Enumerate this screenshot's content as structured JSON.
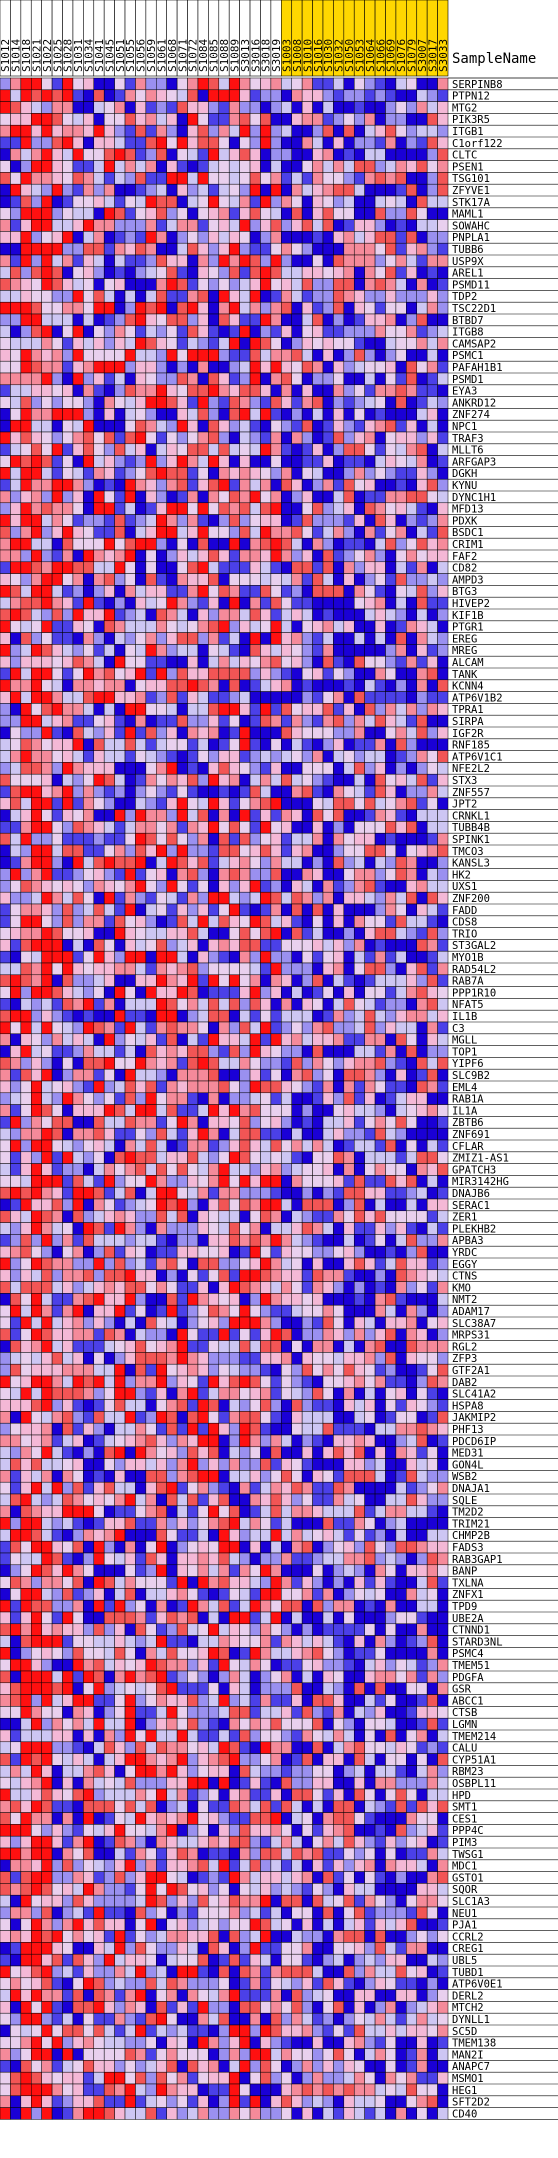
{
  "chart_data": {
    "type": "heatmap",
    "row_header": "SampleName",
    "columns": [
      {
        "name": "S1012",
        "group": "class1"
      },
      {
        "name": "S1014",
        "group": "class1"
      },
      {
        "name": "S1018",
        "group": "class1"
      },
      {
        "name": "S1021",
        "group": "class1"
      },
      {
        "name": "S1022",
        "group": "class1"
      },
      {
        "name": "S1025",
        "group": "class1"
      },
      {
        "name": "S1028",
        "group": "class1"
      },
      {
        "name": "S1031",
        "group": "class1"
      },
      {
        "name": "S1034",
        "group": "class1"
      },
      {
        "name": "S1041",
        "group": "class1"
      },
      {
        "name": "S1045",
        "group": "class1"
      },
      {
        "name": "S1051",
        "group": "class1"
      },
      {
        "name": "S1055",
        "group": "class1"
      },
      {
        "name": "S1056",
        "group": "class1"
      },
      {
        "name": "S1059",
        "group": "class1"
      },
      {
        "name": "S1061",
        "group": "class1"
      },
      {
        "name": "S1068",
        "group": "class1"
      },
      {
        "name": "S1071",
        "group": "class1"
      },
      {
        "name": "S1072",
        "group": "class1"
      },
      {
        "name": "S1084",
        "group": "class1"
      },
      {
        "name": "S1085",
        "group": "class1"
      },
      {
        "name": "S1088",
        "group": "class1"
      },
      {
        "name": "S1089",
        "group": "class1"
      },
      {
        "name": "S3013",
        "group": "class1"
      },
      {
        "name": "S3016",
        "group": "class1"
      },
      {
        "name": "S3018",
        "group": "class1"
      },
      {
        "name": "S3019",
        "group": "class1"
      },
      {
        "name": "S1003",
        "group": "class2"
      },
      {
        "name": "S1008",
        "group": "class2"
      },
      {
        "name": "S1010",
        "group": "class2"
      },
      {
        "name": "S1016",
        "group": "class2"
      },
      {
        "name": "S1030",
        "group": "class2"
      },
      {
        "name": "S1032",
        "group": "class2"
      },
      {
        "name": "S1050",
        "group": "class2"
      },
      {
        "name": "S1053",
        "group": "class2"
      },
      {
        "name": "S1064",
        "group": "class2"
      },
      {
        "name": "S1066",
        "group": "class2"
      },
      {
        "name": "S1069",
        "group": "class2"
      },
      {
        "name": "S1076",
        "group": "class2"
      },
      {
        "name": "S1079",
        "group": "class2"
      },
      {
        "name": "S3007",
        "group": "class2"
      },
      {
        "name": "S3017",
        "group": "class2"
      },
      {
        "name": "S3033",
        "group": "class2"
      }
    ],
    "rows": [
      "SERPINB8",
      "PTPN12",
      "MTG2",
      "PIK3R5",
      "ITGB1",
      "C1orf122",
      "CLTC",
      "PSEN1",
      "TSG101",
      "ZFYVE1",
      "STK17A",
      "MAML1",
      "SOWAHC",
      "PNPLA1",
      "TUBB6",
      "USP9X",
      "AREL1",
      "PSMD11",
      "TDP2",
      "TSC22D1",
      "BTBD7",
      "ITGB8",
      "CAMSAP2",
      "PSMC1",
      "PAFAH1B1",
      "PSMD1",
      "EYA3",
      "ANKRD12",
      "ZNF274",
      "NPC1",
      "TRAF3",
      "MLLT6",
      "ARFGAP3",
      "DGKH",
      "KYNU",
      "DYNC1H1",
      "MFD13",
      "PDXK",
      "BSDC1",
      "CRIM1",
      "FAF2",
      "CD82",
      "AMPD3",
      "BTG3",
      "HIVEP2",
      "KIF1B",
      "PTGR1",
      "EREG",
      "MREG",
      "ALCAM",
      "TANK",
      "KCNN4",
      "ATP6V1B2",
      "TPRA1",
      "SIRPA",
      "IGF2R",
      "RNF185",
      "ATP6V1C1",
      "NFE2L2",
      "STX3",
      "ZNF557",
      "JPT2",
      "CRNKL1",
      "TUBB4B",
      "SPINK1",
      "TMCO3",
      "KANSL3",
      "HK2",
      "UXS1",
      "ZNF200",
      "FADD",
      "CDS8",
      "TRIO",
      "ST3GAL2",
      "MYO1B",
      "RAD54L2",
      "RAB7A",
      "PPP1R10",
      "NFAT5",
      "IL1B",
      "C3",
      "MGLL",
      "TOP1",
      "YIPF6",
      "SLC9B2",
      "EML4",
      "RAB1A",
      "IL1A",
      "ZBTB6",
      "ZNF691",
      "CFLAR",
      "ZMIZ1-AS1",
      "GPATCH3",
      "MIR3142HG",
      "DNAJB6",
      "SERAC1",
      "ZER1",
      "PLEKHB2",
      "APBA3",
      "YRDC",
      "EGGY",
      "CTNS",
      "KMO",
      "NMT2",
      "ADAM17",
      "SLC38A7",
      "MRPS31",
      "RGL2",
      "ZFP3",
      "GTF2A1",
      "DAB2",
      "SLC41A2",
      "HSPA8",
      "JAKMIP2",
      "PHF13",
      "PDCD6IP",
      "MED31",
      "GON4L",
      "WSB2",
      "DNAJA1",
      "SQLE",
      "TM2D2",
      "TRIM21",
      "CHMP2B",
      "FADS3",
      "RAB3GAP1",
      "BANP",
      "TXLNA",
      "ZNFX1",
      "TPD9",
      "UBE2A",
      "CTNND1",
      "STARD3NL",
      "PSMC4",
      "TMEM51",
      "PDGFA",
      "GSR",
      "ABCC1",
      "CTSB",
      "LGMN",
      "TMEM214",
      "CALU",
      "CYP51A1",
      "RBM23",
      "OSBPL11",
      "HPD",
      "SMT1",
      "CES1",
      "PPP4C",
      "PIM3",
      "TWSG1",
      "MDC1",
      "GSTO1",
      "SQOR",
      "SLC1A3",
      "NEU1",
      "PJA1",
      "CCRL2",
      "CREG1",
      "UBL5",
      "TUBD1",
      "ATP6V0E1",
      "DERL2",
      "MTCH2",
      "DYNLL1",
      "SC5D",
      "TMEM138",
      "MAN2I",
      "ANAPC7",
      "MSMO1",
      "HEG1",
      "SFT2D2",
      "CD40"
    ],
    "color_scale": {
      "low": "#2a00d9",
      "mid": "#e8c6f0",
      "high": "#ff0000"
    },
    "grid": true,
    "group_colors": {
      "class1": "#ffffff",
      "class2": "#ffd700"
    }
  }
}
